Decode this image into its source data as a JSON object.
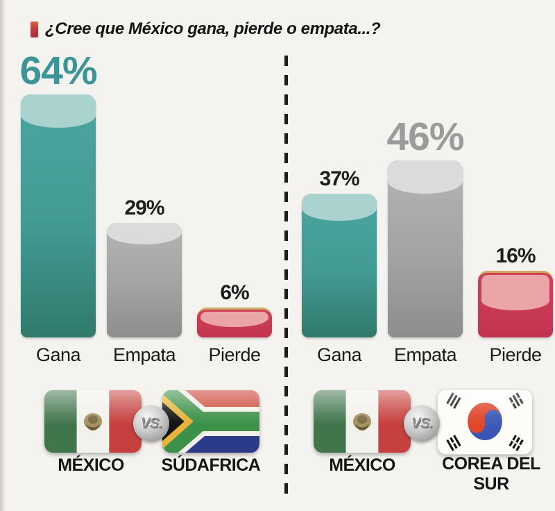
{
  "title": {
    "text": "¿Cree que México gana, pierde o empata...?",
    "bullet_color": "#bf3a44"
  },
  "vs_label": "VS.",
  "chart_data": [
    {
      "type": "bar",
      "title": "México vs Súdafrica",
      "categories": [
        "Gana",
        "Empata",
        "Pierde"
      ],
      "values": [
        64,
        29,
        6
      ],
      "value_labels": [
        "64%",
        "29%",
        "6%"
      ],
      "unit": "%",
      "ylim": [
        0,
        70
      ],
      "grid": false,
      "legend": false,
      "bar_colors": [
        "#47a09b",
        "#a7a7a7",
        "#c63a52"
      ],
      "value_label_colors": [
        "#3d9598",
        "#1d1d1d",
        "#1d1d1d"
      ],
      "matchup": {
        "home": "MÉXICO",
        "away": "SÚDAFRICA",
        "home_flag": "mexico",
        "away_flag": "south-africa"
      }
    },
    {
      "type": "bar",
      "title": "México vs Corea del Sur",
      "categories": [
        "Gana",
        "Empata",
        "Pierde"
      ],
      "values": [
        37,
        46,
        16
      ],
      "value_labels": [
        "37%",
        "46%",
        "16%"
      ],
      "unit": "%",
      "ylim": [
        0,
        70
      ],
      "grid": false,
      "legend": false,
      "bar_colors": [
        "#47a09b",
        "#a7a7a7",
        "#c63a52"
      ],
      "value_label_colors": [
        "#1d1d1d",
        "#9b9b9b",
        "#1d1d1d"
      ],
      "matchup": {
        "home": "MÉXICO",
        "away": "COREA DEL SUR",
        "home_flag": "mexico",
        "away_flag": "south-korea"
      }
    }
  ],
  "colors": {
    "background": "#f5f3ef",
    "divider": "#1d1d1d",
    "teal": "#47a09b",
    "gray": "#a7a7a7",
    "red": "#c63a52",
    "text_dark": "#1d1d1d"
  }
}
